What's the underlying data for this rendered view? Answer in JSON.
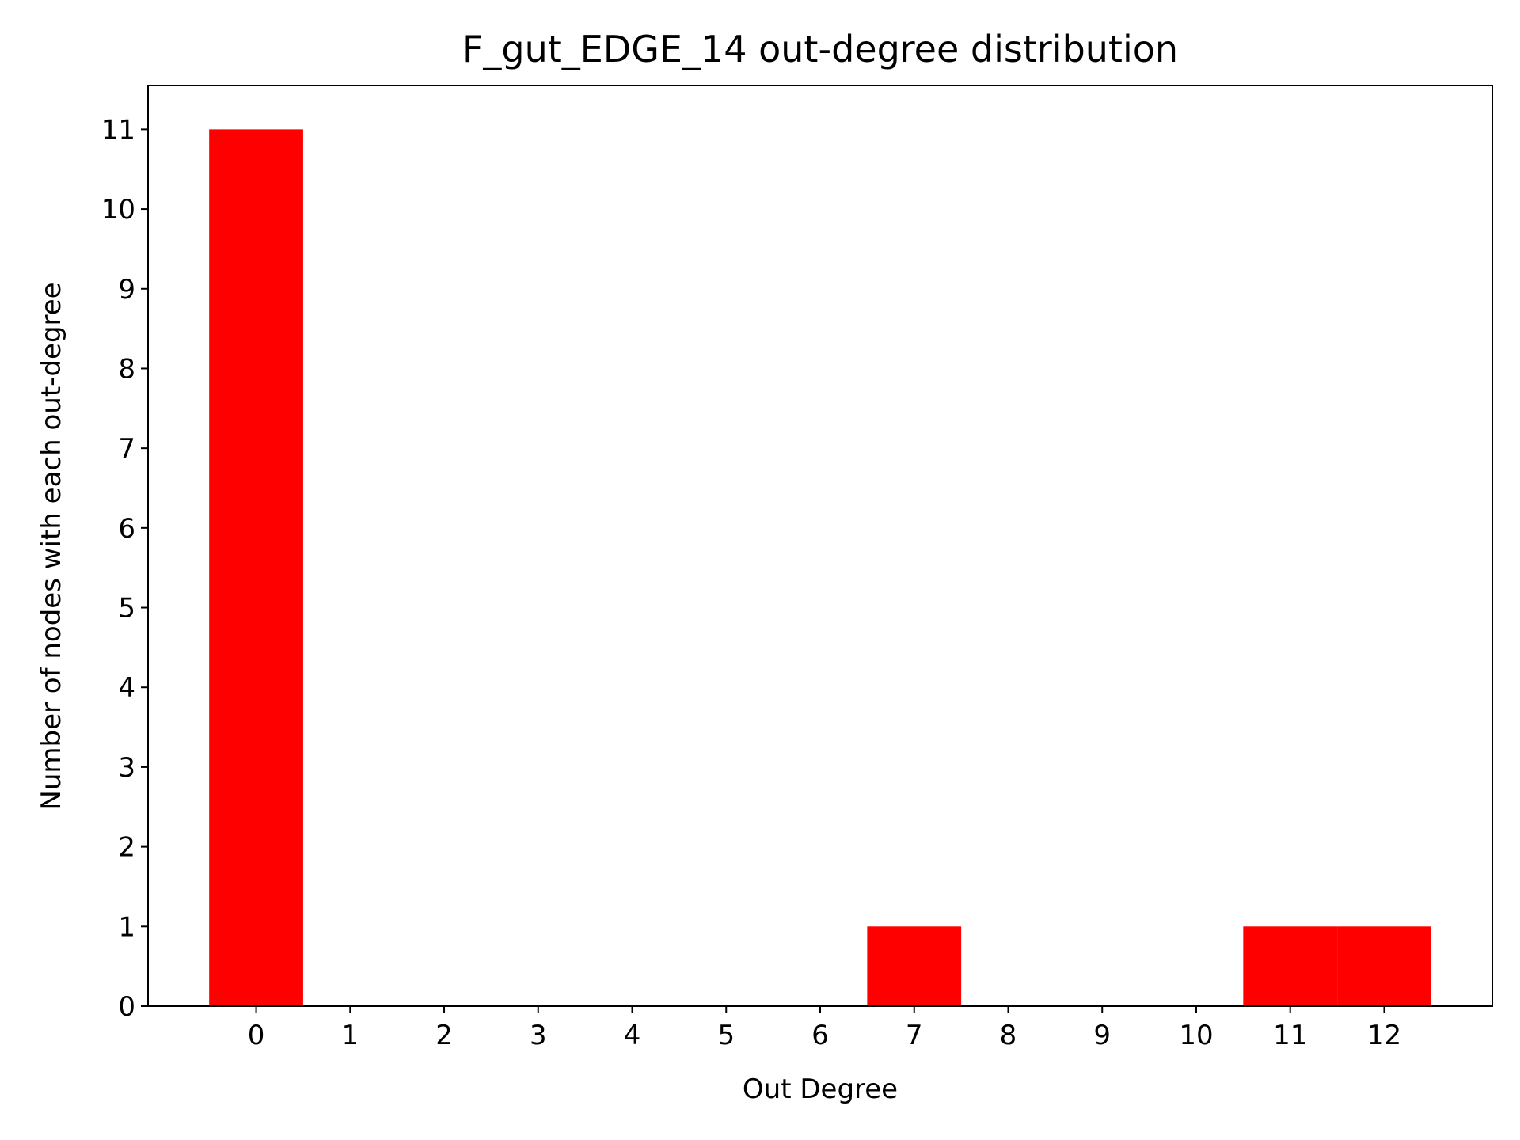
{
  "chart_data": {
    "type": "bar",
    "title": "F_gut_EDGE_14 out-degree distribution",
    "xlabel": "Out Degree",
    "ylabel": "Number of nodes with each out-degree",
    "categories": [
      0,
      1,
      2,
      3,
      4,
      5,
      6,
      7,
      8,
      9,
      10,
      11,
      12
    ],
    "values": [
      11,
      0,
      0,
      0,
      0,
      0,
      0,
      1,
      0,
      0,
      0,
      1,
      1
    ],
    "xlim": [
      -1.15,
      13.15
    ],
    "ylim": [
      0,
      11.55
    ],
    "xticks": [
      0,
      1,
      2,
      3,
      4,
      5,
      6,
      7,
      8,
      9,
      10,
      11,
      12
    ],
    "yticks": [
      0,
      1,
      2,
      3,
      4,
      5,
      6,
      7,
      8,
      9,
      10,
      11
    ],
    "bar_color": "#ff0000",
    "grid": false,
    "legend": "none"
  }
}
